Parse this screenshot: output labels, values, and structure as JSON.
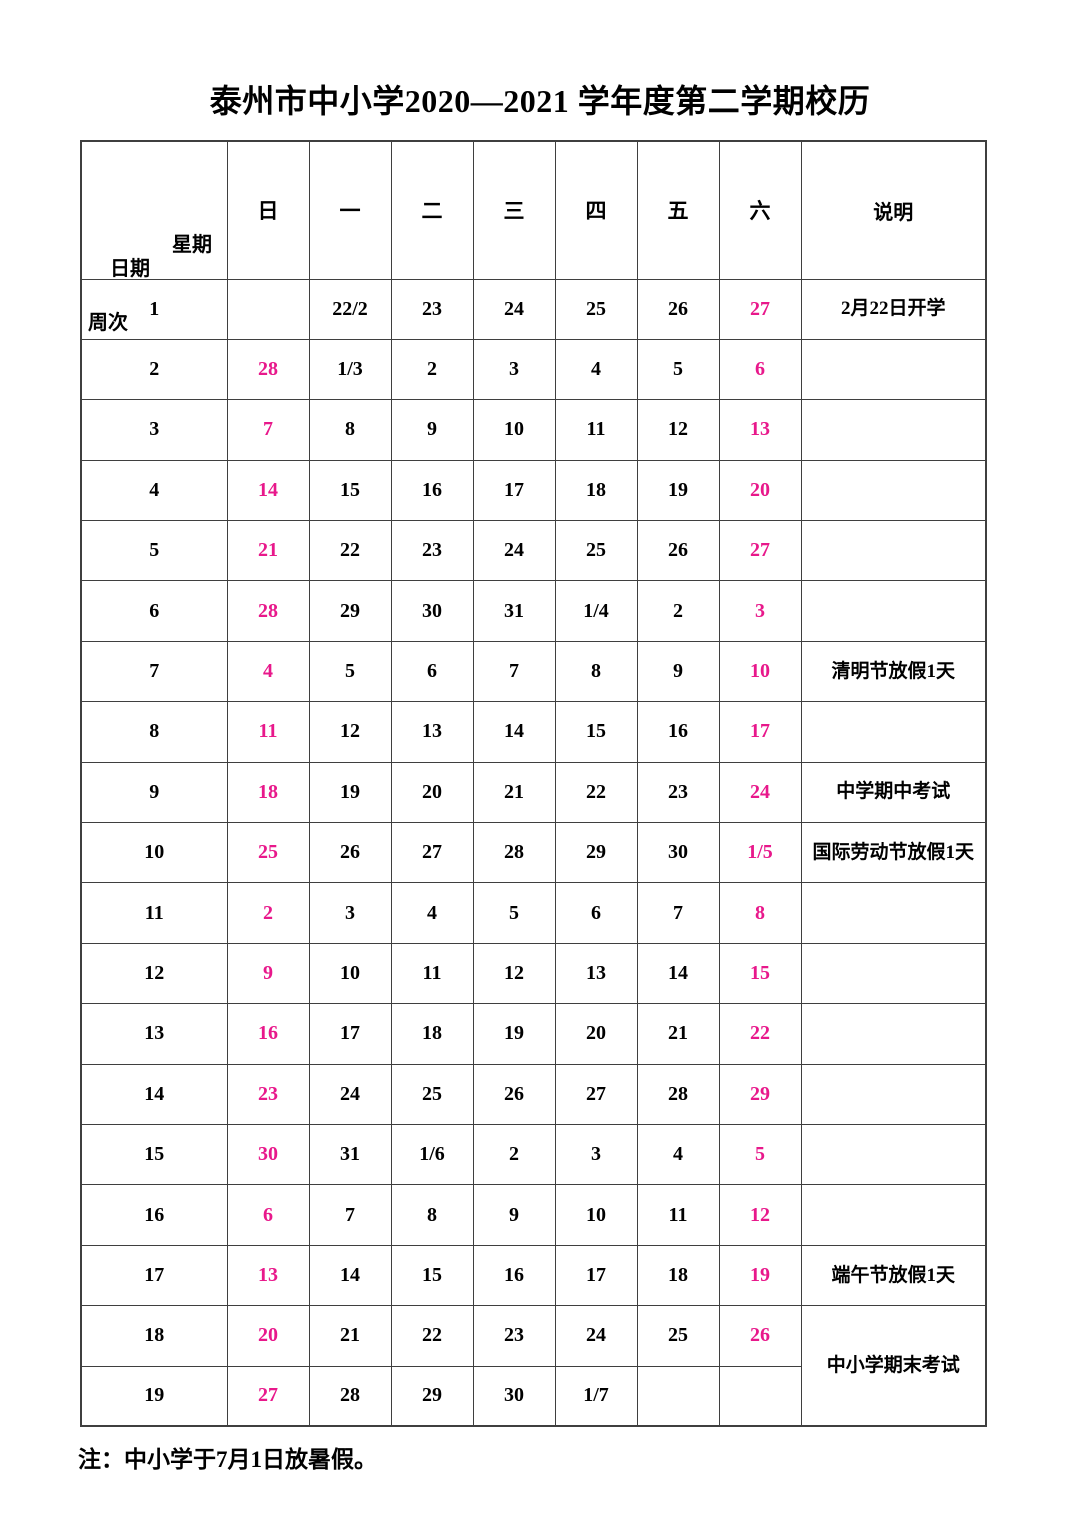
{
  "title": "泰州市中小学2020—2021 学年度第二学期校历",
  "corner": {
    "week_day_label": "星期",
    "date_label": "日期",
    "week_num_label": "周次"
  },
  "day_headers": [
    "日",
    "一",
    "二",
    "三",
    "四",
    "五",
    "六"
  ],
  "notes_header": "说明",
  "footnote": "注：中小学于7月1日放暑假。",
  "colors": {
    "highlight": "#e8188b",
    "border": "#3f3f3f",
    "text": "#000000"
  },
  "rows": [
    {
      "week": "1",
      "cells": [
        "",
        "22/2",
        "23",
        "24",
        "25",
        "26",
        "27"
      ],
      "hl": [
        6
      ],
      "note": "2月22日开学"
    },
    {
      "week": "2",
      "cells": [
        "28",
        "1/3",
        "2",
        "3",
        "4",
        "5",
        "6"
      ],
      "hl": [
        0,
        6
      ],
      "note": ""
    },
    {
      "week": "3",
      "cells": [
        "7",
        "8",
        "9",
        "10",
        "11",
        "12",
        "13"
      ],
      "hl": [
        0,
        6
      ],
      "note": ""
    },
    {
      "week": "4",
      "cells": [
        "14",
        "15",
        "16",
        "17",
        "18",
        "19",
        "20"
      ],
      "hl": [
        0,
        6
      ],
      "note": ""
    },
    {
      "week": "5",
      "cells": [
        "21",
        "22",
        "23",
        "24",
        "25",
        "26",
        "27"
      ],
      "hl": [
        0,
        6
      ],
      "note": ""
    },
    {
      "week": "6",
      "cells": [
        "28",
        "29",
        "30",
        "31",
        "1/4",
        "2",
        "3"
      ],
      "hl": [
        0,
        6
      ],
      "note": ""
    },
    {
      "week": "7",
      "cells": [
        "4",
        "5",
        "6",
        "7",
        "8",
        "9",
        "10"
      ],
      "hl": [
        0,
        6
      ],
      "note": "清明节放假1天"
    },
    {
      "week": "8",
      "cells": [
        "11",
        "12",
        "13",
        "14",
        "15",
        "16",
        "17"
      ],
      "hl": [
        0,
        6
      ],
      "note": ""
    },
    {
      "week": "9",
      "cells": [
        "18",
        "19",
        "20",
        "21",
        "22",
        "23",
        "24"
      ],
      "hl": [
        0,
        6
      ],
      "note": "中学期中考试"
    },
    {
      "week": "10",
      "cells": [
        "25",
        "26",
        "27",
        "28",
        "29",
        "30",
        "1/5"
      ],
      "hl": [
        0,
        6
      ],
      "note": "国际劳动节放假1天"
    },
    {
      "week": "11",
      "cells": [
        "2",
        "3",
        "4",
        "5",
        "6",
        "7",
        "8"
      ],
      "hl": [
        0,
        6
      ],
      "note": ""
    },
    {
      "week": "12",
      "cells": [
        "9",
        "10",
        "11",
        "12",
        "13",
        "14",
        "15"
      ],
      "hl": [
        0,
        6
      ],
      "note": ""
    },
    {
      "week": "13",
      "cells": [
        "16",
        "17",
        "18",
        "19",
        "20",
        "21",
        "22"
      ],
      "hl": [
        0,
        6
      ],
      "note": ""
    },
    {
      "week": "14",
      "cells": [
        "23",
        "24",
        "25",
        "26",
        "27",
        "28",
        "29"
      ],
      "hl": [
        0,
        6
      ],
      "note": ""
    },
    {
      "week": "15",
      "cells": [
        "30",
        "31",
        "1/6",
        "2",
        "3",
        "4",
        "5"
      ],
      "hl": [
        0,
        6
      ],
      "note": ""
    },
    {
      "week": "16",
      "cells": [
        "6",
        "7",
        "8",
        "9",
        "10",
        "11",
        "12"
      ],
      "hl": [
        0,
        6
      ],
      "note": ""
    },
    {
      "week": "17",
      "cells": [
        "13",
        "14",
        "15",
        "16",
        "17",
        "18",
        "19"
      ],
      "hl": [
        0,
        6
      ],
      "note": "端午节放假1天"
    },
    {
      "week": "18",
      "cells": [
        "20",
        "21",
        "22",
        "23",
        "24",
        "25",
        "26"
      ],
      "hl": [
        0,
        6
      ],
      "note": "中小学期末考试",
      "noteRowspan": 2
    },
    {
      "week": "19",
      "cells": [
        "27",
        "28",
        "29",
        "30",
        "1/7",
        "",
        ""
      ],
      "hl": [
        0
      ],
      "note": null
    }
  ]
}
